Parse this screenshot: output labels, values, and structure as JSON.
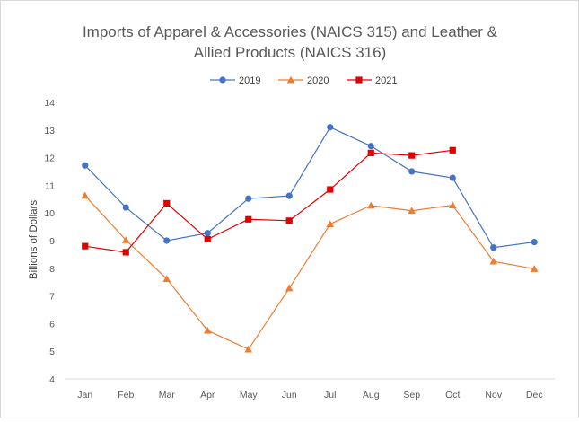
{
  "chart_data": {
    "type": "line",
    "title": "Imports of Apparel & Accessories (NAICS 315) and Leather & Allied Products (NAICS 316)",
    "title_lines": [
      "Imports of Apparel & Accessories (NAICS 315) and Leather &",
      "Allied Products (NAICS 316)"
    ],
    "xlabel": "",
    "ylabel": "Billions of Dollars",
    "categories": [
      "Jan",
      "Feb",
      "Mar",
      "Apr",
      "May",
      "Jun",
      "Jul",
      "Aug",
      "Sep",
      "Oct",
      "Nov",
      "Dec"
    ],
    "ylim": [
      4,
      14
    ],
    "yticks": [
      4,
      5,
      6,
      7,
      8,
      9,
      10,
      11,
      12,
      13,
      14
    ],
    "grid": false,
    "legend_position": "top",
    "series": [
      {
        "name": "2019",
        "color": "#4472c4",
        "marker": "circle",
        "values": [
          11.72,
          10.2,
          9.0,
          9.27,
          10.52,
          10.62,
          13.1,
          12.42,
          11.5,
          11.27,
          8.75,
          8.95
        ]
      },
      {
        "name": "2020",
        "color": "#ed7d31",
        "marker": "triangle",
        "values": [
          10.63,
          9.02,
          7.62,
          5.75,
          5.07,
          7.28,
          9.6,
          10.27,
          10.08,
          10.28,
          8.25,
          7.98
        ]
      },
      {
        "name": "2021",
        "color": "#e00000",
        "marker": "square",
        "values": [
          8.8,
          8.58,
          10.35,
          9.05,
          9.77,
          9.72,
          10.85,
          12.17,
          12.08,
          12.27,
          null,
          null
        ]
      }
    ]
  }
}
